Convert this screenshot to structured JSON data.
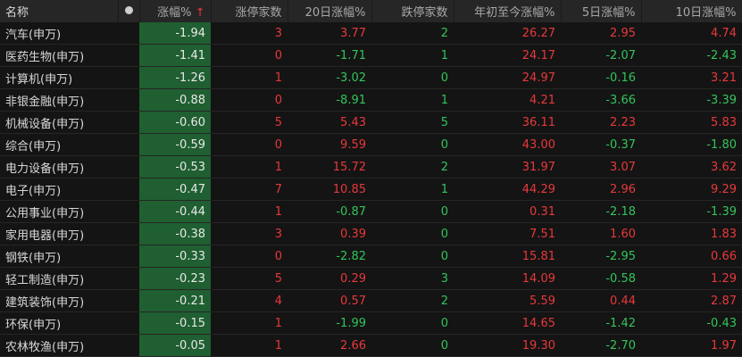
{
  "headers": {
    "name": "名称",
    "chg": "涨幅%",
    "sort_arrow": "↑",
    "limit_up": "涨停家数",
    "d20": "20日涨幅%",
    "limit_down": "跌停家数",
    "ytd": "年初至今涨幅%",
    "d5": "5日涨幅%",
    "d10": "10日涨幅%"
  },
  "colors": {
    "up": "#e8383a",
    "down": "#33c45a",
    "highlight_col": "#1f5f31"
  },
  "rows": [
    [
      "汽车(申万)",
      "-1.94",
      "3",
      "3.77",
      "2",
      "26.27",
      "2.95",
      "4.74"
    ],
    [
      "医药生物(申万)",
      "-1.41",
      "0",
      "-1.71",
      "1",
      "24.17",
      "-2.07",
      "-2.43"
    ],
    [
      "计算机(申万)",
      "-1.26",
      "1",
      "-3.02",
      "0",
      "24.97",
      "-0.16",
      "3.21"
    ],
    [
      "非银金融(申万)",
      "-0.88",
      "0",
      "-8.91",
      "1",
      "4.21",
      "-3.66",
      "-3.39"
    ],
    [
      "机械设备(申万)",
      "-0.60",
      "5",
      "5.43",
      "5",
      "36.11",
      "2.23",
      "5.83"
    ],
    [
      "综合(申万)",
      "-0.59",
      "0",
      "9.59",
      "0",
      "43.00",
      "-0.37",
      "-1.80"
    ],
    [
      "电力设备(申万)",
      "-0.53",
      "1",
      "15.72",
      "2",
      "31.97",
      "3.07",
      "3.62"
    ],
    [
      "电子(申万)",
      "-0.47",
      "7",
      "10.85",
      "1",
      "44.29",
      "2.96",
      "9.29"
    ],
    [
      "公用事业(申万)",
      "-0.44",
      "1",
      "-0.87",
      "0",
      "0.31",
      "-2.18",
      "-1.39"
    ],
    [
      "家用电器(申万)",
      "-0.38",
      "3",
      "0.39",
      "0",
      "7.51",
      "1.60",
      "1.83"
    ],
    [
      "钢铁(申万)",
      "-0.33",
      "0",
      "-2.82",
      "0",
      "15.81",
      "-2.95",
      "0.66"
    ],
    [
      "轻工制造(申万)",
      "-0.23",
      "5",
      "0.29",
      "3",
      "14.09",
      "-0.58",
      "1.29"
    ],
    [
      "建筑装饰(申万)",
      "-0.21",
      "4",
      "0.57",
      "2",
      "5.59",
      "0.44",
      "2.87"
    ],
    [
      "环保(申万)",
      "-0.15",
      "1",
      "-1.99",
      "0",
      "14.65",
      "-1.42",
      "-0.43"
    ],
    [
      "农林牧渔(申万)",
      "-0.05",
      "1",
      "2.66",
      "0",
      "19.30",
      "-2.70",
      "1.97"
    ]
  ]
}
